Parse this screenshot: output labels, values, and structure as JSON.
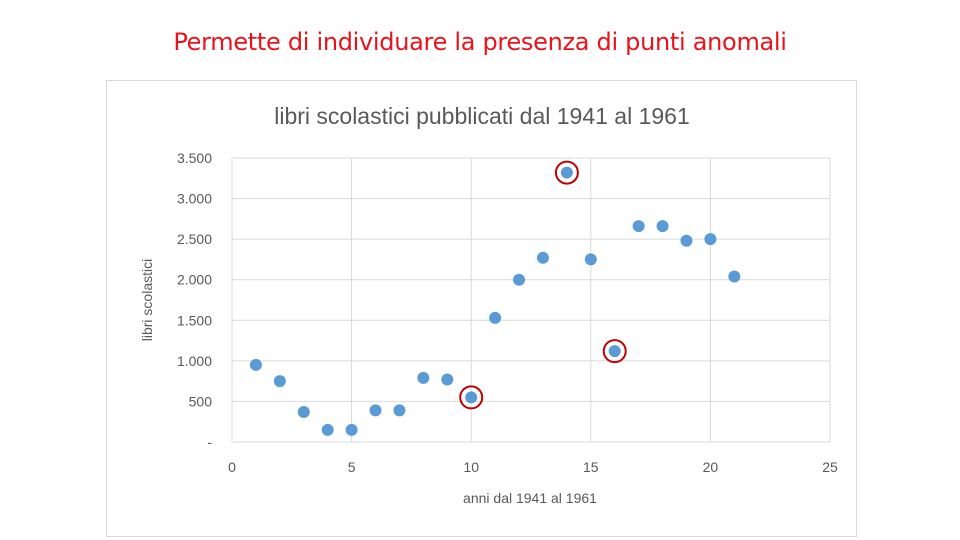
{
  "slide": {
    "title": "Permette di individuare la presenza di punti anomali",
    "title_color": "#e8141b"
  },
  "chart_data": {
    "type": "scatter",
    "title": "libri scolastici  pubblicati dal 1941 al 1961",
    "xlabel": "anni dal 1941 al 1961",
    "ylabel": "libri scolastici",
    "xlim": [
      0,
      25
    ],
    "ylim": [
      0,
      3500
    ],
    "x_ticks": [
      0,
      5,
      10,
      15,
      20,
      25
    ],
    "x_tick_labels": [
      "0",
      "5",
      "10",
      "15",
      "20",
      "25"
    ],
    "y_ticks": [
      0,
      500,
      1000,
      1500,
      2000,
      2500,
      3000,
      3500
    ],
    "y_tick_labels": [
      "-",
      "500",
      "1.000",
      "1.500",
      "2.000",
      "2.500",
      "3.000",
      "3.500"
    ],
    "grid": true,
    "marker_color": "#5b9bd5",
    "highlight_color": "#c00000",
    "points": [
      {
        "x": 1,
        "y": 950
      },
      {
        "x": 2,
        "y": 750
      },
      {
        "x": 3,
        "y": 370
      },
      {
        "x": 4,
        "y": 150
      },
      {
        "x": 5,
        "y": 150
      },
      {
        "x": 6,
        "y": 390
      },
      {
        "x": 7,
        "y": 390
      },
      {
        "x": 8,
        "y": 790
      },
      {
        "x": 9,
        "y": 770
      },
      {
        "x": 10,
        "y": 550,
        "outlier": true
      },
      {
        "x": 11,
        "y": 1530
      },
      {
        "x": 12,
        "y": 2000
      },
      {
        "x": 13,
        "y": 2270
      },
      {
        "x": 14,
        "y": 3320,
        "outlier": true
      },
      {
        "x": 15,
        "y": 2250
      },
      {
        "x": 16,
        "y": 1120,
        "outlier": true
      },
      {
        "x": 17,
        "y": 2660
      },
      {
        "x": 18,
        "y": 2660
      },
      {
        "x": 19,
        "y": 2480
      },
      {
        "x": 20,
        "y": 2500
      },
      {
        "x": 21,
        "y": 2040
      }
    ]
  }
}
